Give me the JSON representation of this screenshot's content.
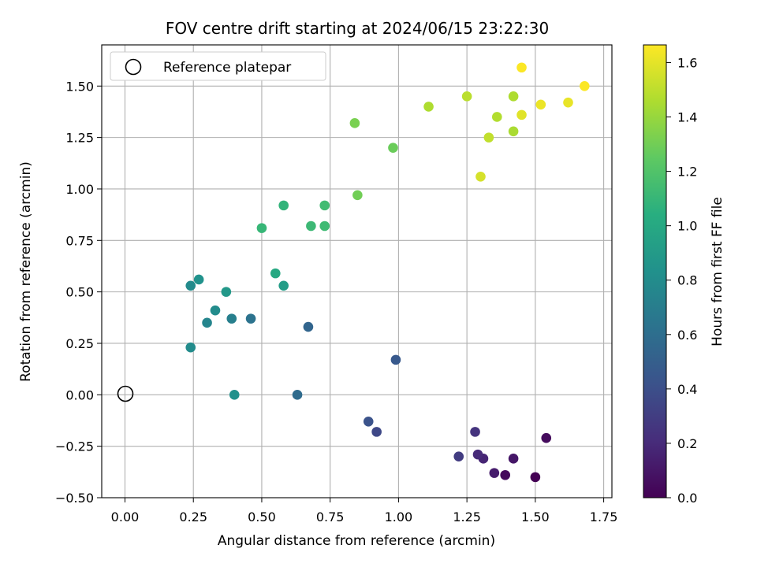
{
  "chart_data": {
    "type": "scatter",
    "title": "FOV centre drift starting at 2024/06/15 23:22:30",
    "xlabel": "Angular distance from reference (arcmin)",
    "ylabel": "Rotation from reference (arcmin)",
    "xlim": [
      -0.085,
      1.78
    ],
    "ylim": [
      -0.5,
      1.7
    ],
    "xticks": [
      0.0,
      0.25,
      0.5,
      0.75,
      1.0,
      1.25,
      1.5,
      1.75
    ],
    "xtick_labels": [
      "0.00",
      "0.25",
      "0.50",
      "0.75",
      "1.00",
      "1.25",
      "1.50",
      "1.75"
    ],
    "yticks": [
      -0.5,
      -0.25,
      0.0,
      0.25,
      0.5,
      0.75,
      1.0,
      1.25,
      1.5
    ],
    "ytick_labels": [
      "−0.50",
      "−0.25",
      "0.00",
      "0.25",
      "0.50",
      "0.75",
      "1.00",
      "1.25",
      "1.50"
    ],
    "grid": true,
    "legend": {
      "placement": "top-left",
      "entries": [
        "Reference platepar"
      ]
    },
    "reference_point": {
      "x": 0.0,
      "y": 0.0
    },
    "colorbar": {
      "label": "Hours from first FF file",
      "colormap": "viridis",
      "range": [
        0.0,
        1.665
      ],
      "ticks": [
        0.0,
        0.2,
        0.4,
        0.6,
        0.8,
        1.0,
        1.2,
        1.4,
        1.6
      ],
      "tick_labels": [
        "0.0",
        "0.2",
        "0.4",
        "0.6",
        "0.8",
        "1.0",
        "1.2",
        "1.4",
        "1.6"
      ]
    },
    "points": [
      {
        "x": 1.5,
        "y": -0.4,
        "h": 0.0
      },
      {
        "x": 1.39,
        "y": -0.39,
        "h": 0.04
      },
      {
        "x": 1.54,
        "y": -0.21,
        "h": 0.05
      },
      {
        "x": 1.42,
        "y": -0.31,
        "h": 0.1
      },
      {
        "x": 1.35,
        "y": -0.38,
        "h": 0.13
      },
      {
        "x": 1.31,
        "y": -0.31,
        "h": 0.17
      },
      {
        "x": 1.29,
        "y": -0.29,
        "h": 0.2
      },
      {
        "x": 1.28,
        "y": -0.18,
        "h": 0.25
      },
      {
        "x": 1.22,
        "y": -0.3,
        "h": 0.29
      },
      {
        "x": 0.92,
        "y": -0.18,
        "h": 0.36
      },
      {
        "x": 0.89,
        "y": -0.13,
        "h": 0.42
      },
      {
        "x": 0.99,
        "y": 0.17,
        "h": 0.46
      },
      {
        "x": 0.67,
        "y": 0.33,
        "h": 0.54
      },
      {
        "x": 0.63,
        "y": 0.0,
        "h": 0.58
      },
      {
        "x": 0.46,
        "y": 0.37,
        "h": 0.63
      },
      {
        "x": 0.39,
        "y": 0.37,
        "h": 0.71
      },
      {
        "x": 0.3,
        "y": 0.35,
        "h": 0.75
      },
      {
        "x": 0.24,
        "y": 0.23,
        "h": 0.8
      },
      {
        "x": 0.4,
        "y": 0.0,
        "h": 0.83
      },
      {
        "x": 0.33,
        "y": 0.41,
        "h": 0.8
      },
      {
        "x": 0.24,
        "y": 0.53,
        "h": 0.79
      },
      {
        "x": 0.27,
        "y": 0.56,
        "h": 0.84
      },
      {
        "x": 0.37,
        "y": 0.5,
        "h": 0.88
      },
      {
        "x": 0.58,
        "y": 0.53,
        "h": 0.92
      },
      {
        "x": 0.55,
        "y": 0.59,
        "h": 1.0
      },
      {
        "x": 0.5,
        "y": 0.81,
        "h": 1.1
      },
      {
        "x": 0.58,
        "y": 0.92,
        "h": 1.08
      },
      {
        "x": 0.68,
        "y": 0.82,
        "h": 1.12
      },
      {
        "x": 0.73,
        "y": 0.92,
        "h": 1.14
      },
      {
        "x": 0.73,
        "y": 0.82,
        "h": 1.13
      },
      {
        "x": 0.85,
        "y": 0.97,
        "h": 1.3
      },
      {
        "x": 0.84,
        "y": 1.32,
        "h": 1.32
      },
      {
        "x": 0.98,
        "y": 1.2,
        "h": 1.28
      },
      {
        "x": 1.11,
        "y": 1.4,
        "h": 1.46
      },
      {
        "x": 1.25,
        "y": 1.45,
        "h": 1.49
      },
      {
        "x": 1.33,
        "y": 1.25,
        "h": 1.51
      },
      {
        "x": 1.36,
        "y": 1.35,
        "h": 1.47
      },
      {
        "x": 1.42,
        "y": 1.45,
        "h": 1.46
      },
      {
        "x": 1.42,
        "y": 1.28,
        "h": 1.45
      },
      {
        "x": 1.3,
        "y": 1.06,
        "h": 1.56
      },
      {
        "x": 1.45,
        "y": 1.36,
        "h": 1.59
      },
      {
        "x": 1.45,
        "y": 1.59,
        "h": 1.66
      },
      {
        "x": 1.52,
        "y": 1.41,
        "h": 1.62
      },
      {
        "x": 1.62,
        "y": 1.42,
        "h": 1.61
      },
      {
        "x": 1.68,
        "y": 1.5,
        "h": 1.66
      }
    ]
  }
}
